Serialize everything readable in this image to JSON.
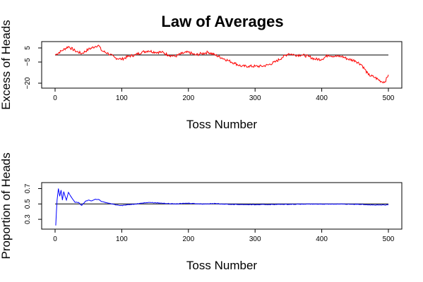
{
  "chart_data": [
    {
      "type": "line",
      "title": "Law of Averages",
      "xlabel": "Toss Number",
      "ylabel": "Excess of Heads",
      "xlim": [
        0,
        500
      ],
      "ylim": [
        -22,
        8
      ],
      "xticks": [
        0,
        100,
        200,
        300,
        400,
        500
      ],
      "yticks": [
        -20,
        -5,
        5
      ],
      "xtick_labels": [
        "0",
        "100",
        "200",
        "300",
        "400",
        "500"
      ],
      "ytick_labels": [
        "−20",
        "−5",
        "5"
      ],
      "reference_line": 0,
      "grid": false,
      "color": "#ff0000",
      "points": [
        [
          0,
          0
        ],
        [
          10,
          3
        ],
        [
          20,
          6
        ],
        [
          30,
          3
        ],
        [
          40,
          1
        ],
        [
          50,
          4
        ],
        [
          60,
          6
        ],
        [
          65,
          7
        ],
        [
          70,
          3
        ],
        [
          80,
          1
        ],
        [
          90,
          -2
        ],
        [
          100,
          -3
        ],
        [
          110,
          -1
        ],
        [
          120,
          0
        ],
        [
          130,
          2
        ],
        [
          140,
          3
        ],
        [
          150,
          2
        ],
        [
          160,
          2
        ],
        [
          170,
          0
        ],
        [
          180,
          -1
        ],
        [
          190,
          1
        ],
        [
          200,
          2
        ],
        [
          210,
          0
        ],
        [
          220,
          1
        ],
        [
          230,
          2
        ],
        [
          240,
          0
        ],
        [
          250,
          -2
        ],
        [
          260,
          -4
        ],
        [
          270,
          -6
        ],
        [
          280,
          -8
        ],
        [
          290,
          -8
        ],
        [
          300,
          -8
        ],
        [
          310,
          -8
        ],
        [
          320,
          -7
        ],
        [
          330,
          -5
        ],
        [
          340,
          -2
        ],
        [
          350,
          1
        ],
        [
          360,
          0
        ],
        [
          370,
          0
        ],
        [
          380,
          -1
        ],
        [
          390,
          -3
        ],
        [
          400,
          -3
        ],
        [
          410,
          0
        ],
        [
          420,
          -1
        ],
        [
          430,
          -1
        ],
        [
          440,
          -3
        ],
        [
          450,
          -4
        ],
        [
          460,
          -7
        ],
        [
          470,
          -14
        ],
        [
          480,
          -16
        ],
        [
          490,
          -19
        ],
        [
          495,
          -19
        ],
        [
          500,
          -14
        ]
      ]
    },
    {
      "type": "line",
      "title": "",
      "xlabel": "Toss Number",
      "ylabel": "Proportion of Heads",
      "xlim": [
        0,
        500
      ],
      "ylim": [
        0.2,
        0.75
      ],
      "xticks": [
        0,
        100,
        200,
        300,
        400,
        500
      ],
      "yticks": [
        0.3,
        0.5,
        0.7
      ],
      "xtick_labels": [
        "0",
        "100",
        "200",
        "300",
        "400",
        "500"
      ],
      "ytick_labels": [
        "0.3",
        "0.5",
        "0.7"
      ],
      "reference_line": 0.5,
      "grid": false,
      "color": "#0000ff",
      "points": [
        [
          1,
          0.22
        ],
        [
          2,
          0.4
        ],
        [
          3,
          0.55
        ],
        [
          5,
          0.7
        ],
        [
          7,
          0.6
        ],
        [
          9,
          0.68
        ],
        [
          11,
          0.55
        ],
        [
          13,
          0.66
        ],
        [
          15,
          0.6
        ],
        [
          17,
          0.55
        ],
        [
          20,
          0.65
        ],
        [
          25,
          0.58
        ],
        [
          30,
          0.52
        ],
        [
          35,
          0.52
        ],
        [
          40,
          0.48
        ],
        [
          45,
          0.53
        ],
        [
          50,
          0.55
        ],
        [
          55,
          0.54
        ],
        [
          60,
          0.56
        ],
        [
          65,
          0.56
        ],
        [
          70,
          0.53
        ],
        [
          80,
          0.51
        ],
        [
          90,
          0.49
        ],
        [
          100,
          0.48
        ],
        [
          120,
          0.5
        ],
        [
          140,
          0.52
        ],
        [
          160,
          0.51
        ],
        [
          180,
          0.5
        ],
        [
          200,
          0.51
        ],
        [
          220,
          0.5
        ],
        [
          240,
          0.505
        ],
        [
          260,
          0.495
        ],
        [
          300,
          0.49
        ],
        [
          340,
          0.495
        ],
        [
          380,
          0.498
        ],
        [
          420,
          0.499
        ],
        [
          460,
          0.495
        ],
        [
          480,
          0.485
        ],
        [
          500,
          0.487
        ]
      ]
    }
  ]
}
